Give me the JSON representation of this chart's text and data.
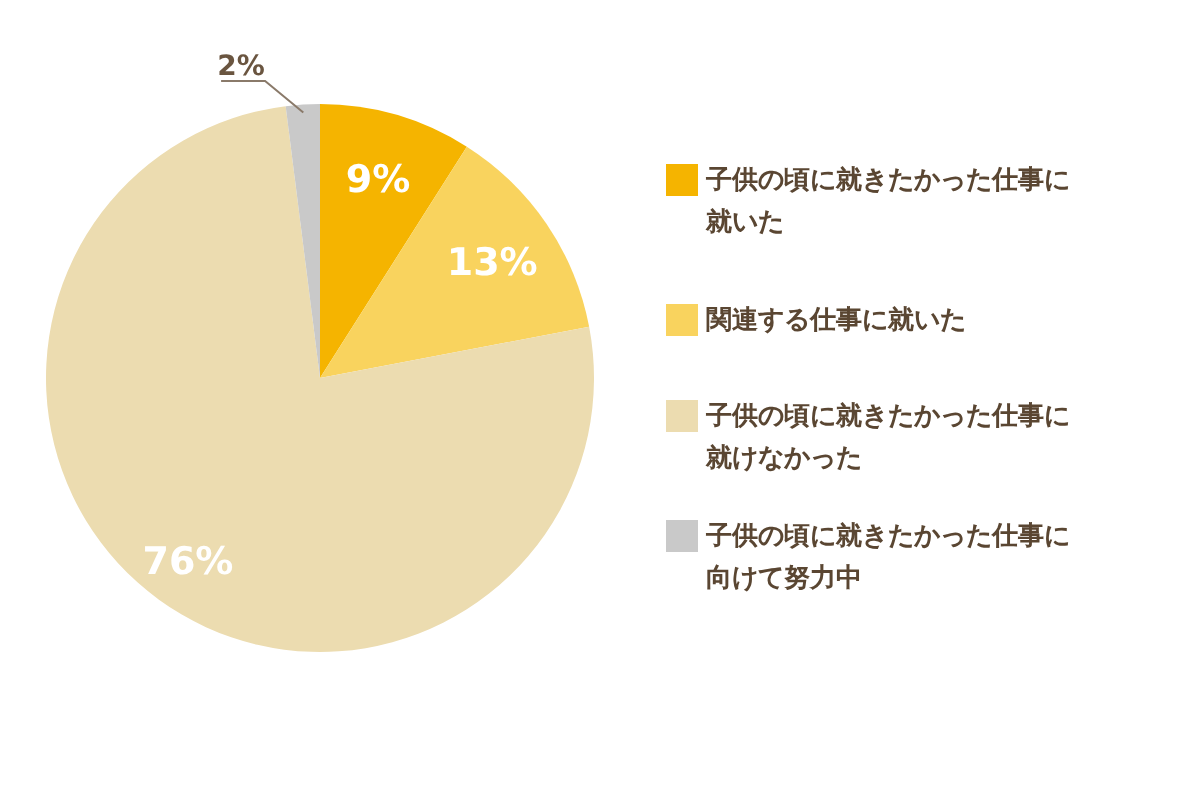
{
  "chart_data": {
    "type": "pie",
    "categories": [
      "子供の頃に就きたかった仕事に就いた",
      "関連する仕事に就いた",
      "子供の頃に就きたかった仕事に就けなかった",
      "子供の頃に就きたかった仕事に向けて努力中"
    ],
    "values": [
      9,
      13,
      76,
      2
    ],
    "colors": [
      "#f5b400",
      "#f9d35e",
      "#ecdcb0",
      "#c9c9c9"
    ],
    "value_labels": [
      "9%",
      "13%",
      "76%",
      "2%"
    ],
    "legend": "right"
  }
}
